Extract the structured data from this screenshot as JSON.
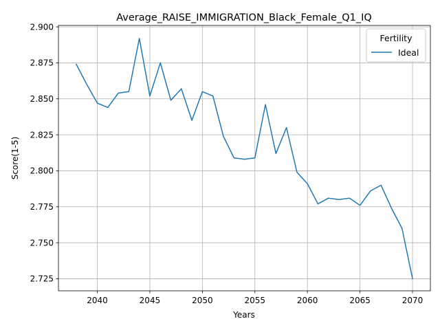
{
  "chart_data": {
    "type": "line",
    "title": "Average_RAISE_IMMIGRATION_Black_Female_Q1_IQ",
    "xlabel": "Years",
    "ylabel": "Score(1-5)",
    "xlim": [
      2036.3,
      2071.7
    ],
    "ylim": [
      2.7166,
      2.901
    ],
    "xticks": [
      2040,
      2045,
      2050,
      2055,
      2060,
      2065,
      2070
    ],
    "yticks": [
      2.725,
      2.75,
      2.775,
      2.8,
      2.825,
      2.85,
      2.875,
      2.9
    ],
    "xtick_labels": [
      "2040",
      "2045",
      "2050",
      "2055",
      "2060",
      "2065",
      "2070"
    ],
    "ytick_labels": [
      "2.725",
      "2.750",
      "2.775",
      "2.800",
      "2.825",
      "2.850",
      "2.875",
      "2.900"
    ],
    "grid": true,
    "legend": {
      "title": "Fertility",
      "placement": "top-right"
    },
    "series": [
      {
        "name": "Ideal",
        "color": "#1f77b4",
        "x": [
          2038,
          2039,
          2040,
          2041,
          2042,
          2043,
          2044,
          2045,
          2046,
          2047,
          2048,
          2049,
          2050,
          2051,
          2052,
          2053,
          2054,
          2055,
          2056,
          2057,
          2058,
          2059,
          2060,
          2061,
          2062,
          2063,
          2064,
          2065,
          2066,
          2067,
          2068,
          2069,
          2070
        ],
        "y": [
          2.874,
          2.86,
          2.847,
          2.844,
          2.854,
          2.855,
          2.892,
          2.852,
          2.875,
          2.849,
          2.857,
          2.835,
          2.855,
          2.852,
          2.824,
          2.809,
          2.808,
          2.809,
          2.846,
          2.812,
          2.83,
          2.799,
          2.791,
          2.777,
          2.781,
          2.78,
          2.781,
          2.776,
          2.786,
          2.79,
          2.774,
          2.76,
          2.725
        ]
      }
    ]
  }
}
